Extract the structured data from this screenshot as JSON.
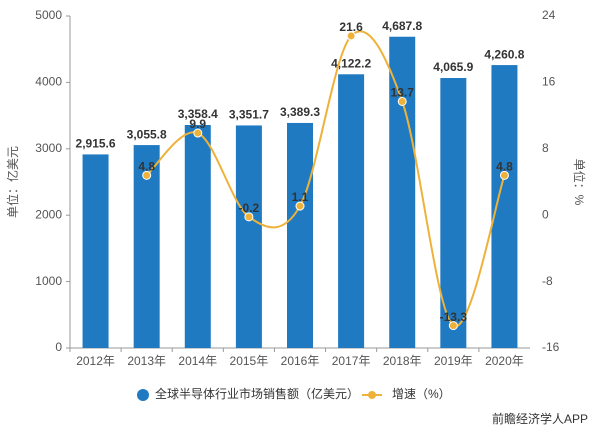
{
  "chart_data": {
    "type": "combo",
    "y_label": "单位：亿美元",
    "y2_label": "单位：%",
    "watermark": "前瞻经济学人APP",
    "categories": [
      "2012年",
      "2013年",
      "2014年",
      "2015年",
      "2016年",
      "2017年",
      "2018年",
      "2019年",
      "2020年"
    ],
    "series": [
      {
        "name": "全球半导体行业市场销售额（亿美元）",
        "type": "bar",
        "color": "#1f7ac2",
        "values": [
          2915.6,
          3055.8,
          3358.4,
          3351.7,
          3389.3,
          4122.2,
          4687.8,
          4065.9,
          4260.8
        ],
        "value_labels": [
          "2,915.6",
          "3,055.8",
          "3,358.4",
          "3,351.7",
          "3,389.3",
          "4,122.2",
          "4,687.8",
          "4,065.9",
          "4,260.8"
        ]
      },
      {
        "name": "增速（%）",
        "type": "line",
        "axis": "y2",
        "color": "#eeb23a",
        "values": [
          null,
          4.8,
          9.9,
          -0.2,
          1.1,
          21.6,
          13.7,
          -13.3,
          4.8
        ]
      }
    ],
    "ylim": [
      0,
      5000
    ],
    "yticks": [
      0,
      1000,
      2000,
      3000,
      4000,
      5000
    ],
    "y2lim": [
      -16,
      24
    ],
    "y2ticks": [
      -16,
      -8,
      0,
      8,
      16,
      24
    ],
    "grid": false
  }
}
